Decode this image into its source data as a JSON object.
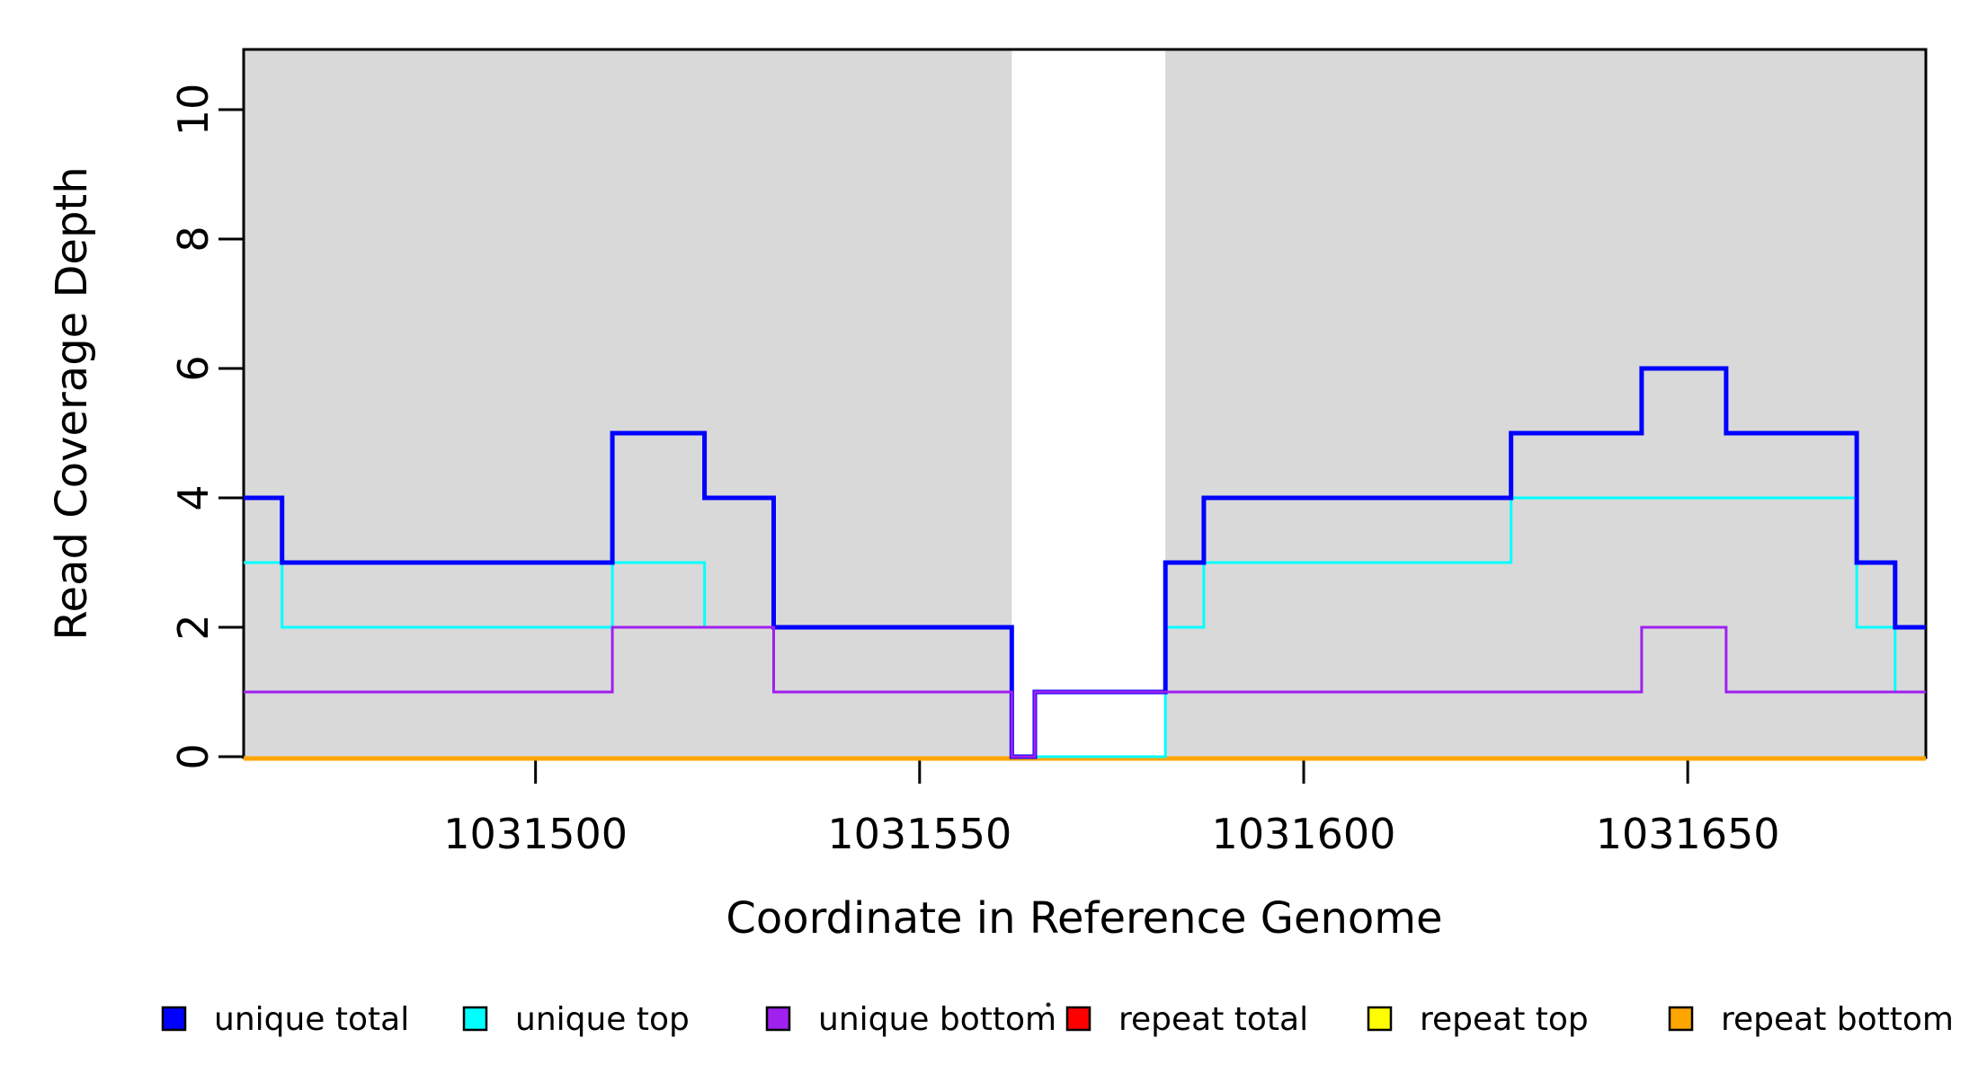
{
  "chart_data": {
    "type": "line",
    "subtype": "step-after",
    "title": "",
    "xlabel": "Coordinate in Reference Genome",
    "ylabel": "Read Coverage Depth",
    "xlim": [
      1031462,
      1031681
    ],
    "ylim": [
      0,
      10.93
    ],
    "x_ticks": [
      1031500,
      1031550,
      1031600,
      1031650
    ],
    "x_tick_labels": [
      "1031500",
      "1031550",
      "1031600",
      "1031650"
    ],
    "y_ticks": [
      0,
      2,
      4,
      6,
      8,
      10
    ],
    "y_tick_labels": [
      "0",
      "2",
      "4",
      "6",
      "8",
      "10"
    ],
    "grid": false,
    "legend_position": "bottom",
    "plot_background": "#ffffff",
    "shaded_regions": [
      {
        "x0": 1031462,
        "x1": 1031562,
        "color": "#d9d9d9"
      },
      {
        "x0": 1031582,
        "x1": 1031681,
        "color": "#d9d9d9"
      }
    ],
    "series": [
      {
        "name": "unique total",
        "color": "#0000ff",
        "width": 5,
        "points": [
          [
            1031462,
            4
          ],
          [
            1031467,
            3
          ],
          [
            1031510,
            5
          ],
          [
            1031522,
            4
          ],
          [
            1031531,
            2
          ],
          [
            1031562,
            0
          ],
          [
            1031565,
            1
          ],
          [
            1031582,
            3
          ],
          [
            1031587,
            4
          ],
          [
            1031627,
            5
          ],
          [
            1031644,
            6
          ],
          [
            1031655,
            5
          ],
          [
            1031672,
            3
          ],
          [
            1031677,
            2
          ],
          [
            1031681,
            2
          ]
        ]
      },
      {
        "name": "unique top",
        "color": "#00ffff",
        "width": 3,
        "points": [
          [
            1031462,
            3
          ],
          [
            1031467,
            2
          ],
          [
            1031510,
            3
          ],
          [
            1031522,
            2
          ],
          [
            1031562,
            0
          ],
          [
            1031582,
            2
          ],
          [
            1031587,
            3
          ],
          [
            1031627,
            4
          ],
          [
            1031672,
            2
          ],
          [
            1031677,
            1
          ],
          [
            1031681,
            1
          ]
        ]
      },
      {
        "name": "unique bottom",
        "color": "#a020f0",
        "width": 3,
        "points": [
          [
            1031462,
            1
          ],
          [
            1031510,
            2
          ],
          [
            1031531,
            1
          ],
          [
            1031562,
            0
          ],
          [
            1031565,
            1
          ],
          [
            1031644,
            2
          ],
          [
            1031655,
            1
          ],
          [
            1031681,
            1
          ]
        ]
      },
      {
        "name": "repeat total",
        "color": "#ff0000",
        "width": 3,
        "points": [
          [
            1031462,
            0
          ],
          [
            1031681,
            0
          ]
        ]
      },
      {
        "name": "repeat top",
        "color": "#ffff00",
        "width": 3,
        "points": [
          [
            1031462,
            0
          ],
          [
            1031681,
            0
          ]
        ]
      },
      {
        "name": "repeat bottom",
        "color": "#ffa500",
        "width": 5,
        "points": [
          [
            1031462,
            0
          ],
          [
            1031681,
            0
          ]
        ]
      }
    ],
    "draw_order": [
      "repeat total",
      "repeat top",
      "repeat bottom",
      "unique top",
      "unique total",
      "unique bottom"
    ]
  },
  "legend": {
    "items": [
      {
        "label": "unique total",
        "color": "#0000ff"
      },
      {
        "label": "unique top",
        "color": "#00ffff"
      },
      {
        "label": "unique bottom",
        "color": "#a020f0"
      },
      {
        "label": "repeat total",
        "color": "#ff0000"
      },
      {
        "label": "repeat top",
        "color": "#ffff00"
      },
      {
        "label": "repeat bottom",
        "color": "#ffa500"
      }
    ]
  }
}
